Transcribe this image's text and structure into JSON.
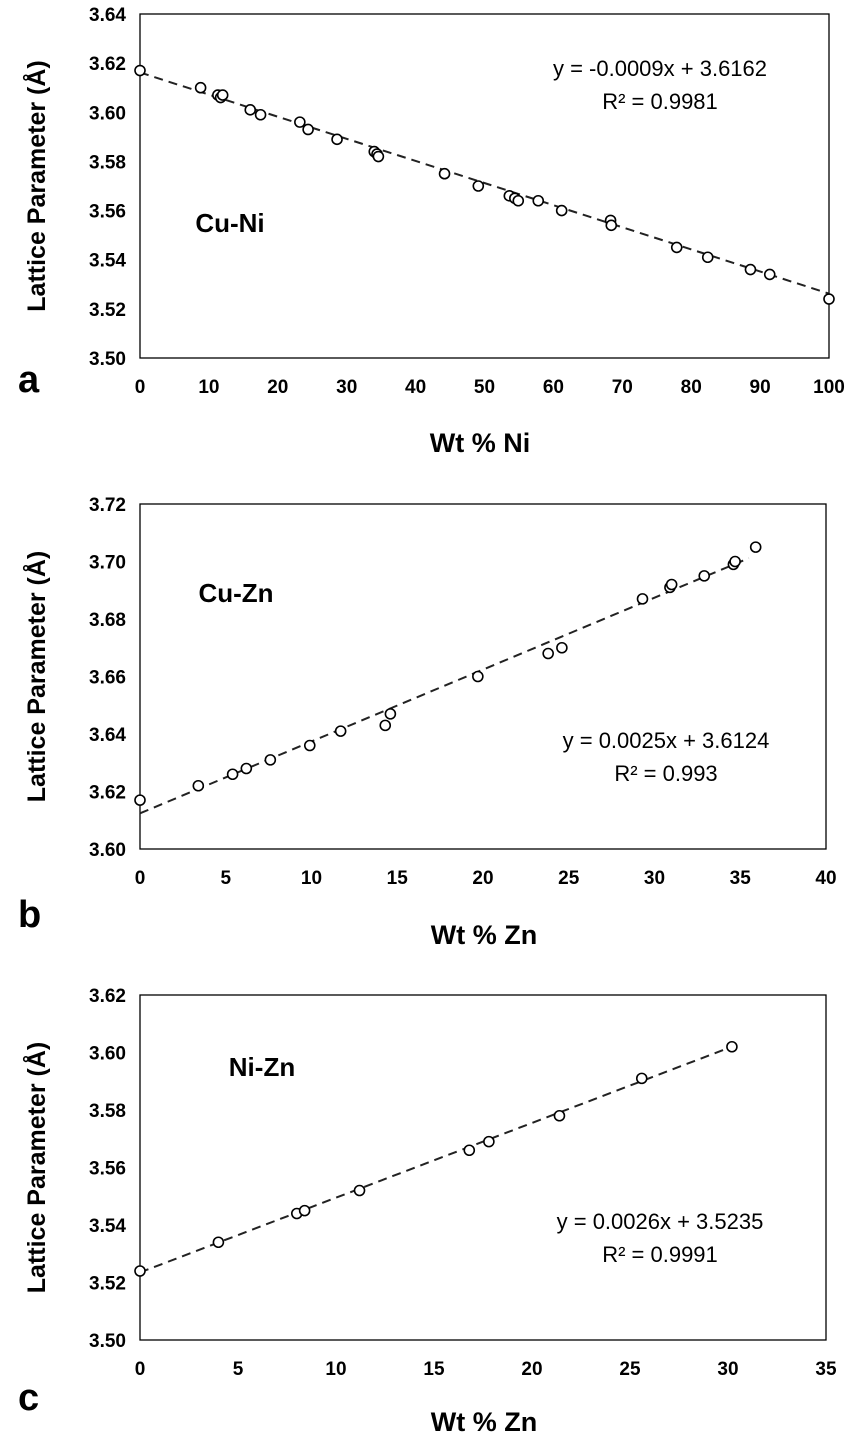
{
  "chart_data": [
    {
      "type": "scatter",
      "panel": "a",
      "system_label": "Cu-Ni",
      "xlabel": "Wt % Ni",
      "ylabel": "Lattice Parameter (Å)",
      "xlim": [
        0,
        100
      ],
      "ylim": [
        3.5,
        3.64
      ],
      "xticks": [
        "0",
        "10",
        "20",
        "30",
        "40",
        "50",
        "60",
        "70",
        "80",
        "90",
        "100"
      ],
      "yticks": [
        "3.50",
        "3.52",
        "3.54",
        "3.56",
        "3.58",
        "3.60",
        "3.62",
        "3.64"
      ],
      "grid": false,
      "trendline": {
        "slope": -0.0009,
        "intercept": 3.6162,
        "x_range": [
          0,
          100
        ]
      },
      "equation": "y = -0.0009x + 3.6162",
      "r2": "R² = 0.9981",
      "points": [
        [
          0,
          3.617
        ],
        [
          8.8,
          3.61
        ],
        [
          11.3,
          3.607
        ],
        [
          11.7,
          3.606
        ],
        [
          12.0,
          3.607
        ],
        [
          16.0,
          3.601
        ],
        [
          17.5,
          3.599
        ],
        [
          23.2,
          3.596
        ],
        [
          24.4,
          3.593
        ],
        [
          28.6,
          3.589
        ],
        [
          34.0,
          3.584
        ],
        [
          34.4,
          3.583
        ],
        [
          34.6,
          3.582
        ],
        [
          44.2,
          3.575
        ],
        [
          49.1,
          3.57
        ],
        [
          53.6,
          3.566
        ],
        [
          54.4,
          3.565
        ],
        [
          54.9,
          3.564
        ],
        [
          57.8,
          3.564
        ],
        [
          61.2,
          3.56
        ],
        [
          68.3,
          3.556
        ],
        [
          68.4,
          3.554
        ],
        [
          77.9,
          3.545
        ],
        [
          82.4,
          3.541
        ],
        [
          88.6,
          3.536
        ],
        [
          91.4,
          3.534
        ],
        [
          100,
          3.524
        ]
      ]
    },
    {
      "type": "scatter",
      "panel": "b",
      "system_label": "Cu-Zn",
      "xlabel": "Wt % Zn",
      "ylabel": "Lattice Parameter (Å)",
      "xlim": [
        0,
        40
      ],
      "ylim": [
        3.6,
        3.72
      ],
      "xticks": [
        "0",
        "5",
        "10",
        "15",
        "20",
        "25",
        "30",
        "35",
        "40"
      ],
      "yticks": [
        "3.60",
        "3.62",
        "3.64",
        "3.66",
        "3.68",
        "3.70",
        "3.72"
      ],
      "grid": false,
      "trendline": {
        "slope": 0.0025,
        "intercept": 3.6124,
        "x_range": [
          0,
          35.5
        ]
      },
      "equation": "y = 0.0025x + 3.6124",
      "r2": "R² = 0.993",
      "points": [
        [
          0,
          3.617
        ],
        [
          3.4,
          3.622
        ],
        [
          5.4,
          3.626
        ],
        [
          6.2,
          3.628
        ],
        [
          7.6,
          3.631
        ],
        [
          9.9,
          3.636
        ],
        [
          11.7,
          3.641
        ],
        [
          14.3,
          3.643
        ],
        [
          14.6,
          3.647
        ],
        [
          19.7,
          3.66
        ],
        [
          23.8,
          3.668
        ],
        [
          24.6,
          3.67
        ],
        [
          29.3,
          3.687
        ],
        [
          30.9,
          3.691
        ],
        [
          31.0,
          3.692
        ],
        [
          32.9,
          3.695
        ],
        [
          34.6,
          3.699
        ],
        [
          34.7,
          3.7
        ],
        [
          35.9,
          3.705
        ]
      ]
    },
    {
      "type": "scatter",
      "panel": "c",
      "system_label": "Ni-Zn",
      "xlabel": "Wt % Zn",
      "ylabel": "Lattice Parameter (Å)",
      "xlim": [
        0,
        35
      ],
      "ylim": [
        3.5,
        3.62
      ],
      "xticks": [
        "0",
        "5",
        "10",
        "15",
        "20",
        "25",
        "30",
        "35"
      ],
      "yticks": [
        "3.50",
        "3.52",
        "3.54",
        "3.56",
        "3.58",
        "3.60",
        "3.62"
      ],
      "grid": false,
      "trendline": {
        "slope": 0.0026,
        "intercept": 3.5235,
        "x_range": [
          0,
          30.2
        ]
      },
      "equation": "y = 0.0026x + 3.5235",
      "r2": "R² = 0.9991",
      "points": [
        [
          0,
          3.524
        ],
        [
          4.0,
          3.534
        ],
        [
          8.0,
          3.544
        ],
        [
          8.4,
          3.545
        ],
        [
          11.2,
          3.552
        ],
        [
          16.8,
          3.566
        ],
        [
          17.8,
          3.569
        ],
        [
          21.4,
          3.578
        ],
        [
          25.6,
          3.591
        ],
        [
          30.2,
          3.602
        ]
      ]
    }
  ]
}
